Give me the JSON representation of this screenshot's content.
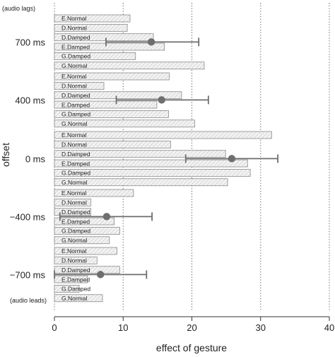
{
  "chart_data": {
    "type": "bar",
    "orientation": "horizontal",
    "xlabel": "effect of gesture",
    "ylabel": "offset",
    "xlim": [
      0,
      40
    ],
    "xticks": [
      0,
      10,
      20,
      30,
      40
    ],
    "vertical_gridlines": "dotted",
    "top_note": "(audio lags)",
    "bottom_note": "(audio leads)",
    "groups": [
      {
        "label": "700 ms",
        "mean": 14.1,
        "ci_low": 7.5,
        "ci_high": 21.0,
        "bars": [
          {
            "label": "E.Normal",
            "value": 11.0
          },
          {
            "label": "D.Normal",
            "value": 10.6
          },
          {
            "label": "D.Damped",
            "value": 14.4
          },
          {
            "label": "E.Damped",
            "value": 16.0
          },
          {
            "label": "G.Damped",
            "value": 11.8
          },
          {
            "label": "G.Normal",
            "value": 21.8
          }
        ]
      },
      {
        "label": "400 ms",
        "mean": 15.6,
        "ci_low": 9.0,
        "ci_high": 22.4,
        "bars": [
          {
            "label": "E.Normal",
            "value": 16.7
          },
          {
            "label": "D.Normal",
            "value": 7.2
          },
          {
            "label": "D.Damped",
            "value": 18.5
          },
          {
            "label": "E.Damped",
            "value": 14.9
          },
          {
            "label": "G.Damped",
            "value": 16.6
          },
          {
            "label": "G.Normal",
            "value": 20.4
          }
        ]
      },
      {
        "label": "0 ms",
        "mean": 25.8,
        "ci_low": 19.1,
        "ci_high": 32.5,
        "bars": [
          {
            "label": "E.Normal",
            "value": 31.6
          },
          {
            "label": "D.Normal",
            "value": 16.9
          },
          {
            "label": "D.Damped",
            "value": 24.9
          },
          {
            "label": "E.Damped",
            "value": 28.1
          },
          {
            "label": "G.Damped",
            "value": 28.5
          },
          {
            "label": "G.Normal",
            "value": 25.2
          }
        ]
      },
      {
        "label": "−400 ms",
        "mean": 7.6,
        "ci_low": 0.8,
        "ci_high": 14.2,
        "bars": [
          {
            "label": "E.Normal",
            "value": 11.5
          },
          {
            "label": "D.Normal",
            "value": 5.3
          },
          {
            "label": "D.Damped",
            "value": 5.3
          },
          {
            "label": "E.Damped",
            "value": 8.7
          },
          {
            "label": "G.Damped",
            "value": 9.5
          },
          {
            "label": "G.Normal",
            "value": 8.0
          }
        ]
      },
      {
        "label": "−700 ms",
        "mean": 6.7,
        "ci_low": 0.0,
        "ci_high": 13.4,
        "bars": [
          {
            "label": "E.Normal",
            "value": 9.1
          },
          {
            "label": "D.Normal",
            "value": 6.2
          },
          {
            "label": "D.Damped",
            "value": 9.5
          },
          {
            "label": "E.Damped",
            "value": 4.8
          },
          {
            "label": "G.Damped",
            "value": 3.6
          },
          {
            "label": "G.Normal",
            "value": 7.0
          }
        ]
      }
    ]
  }
}
